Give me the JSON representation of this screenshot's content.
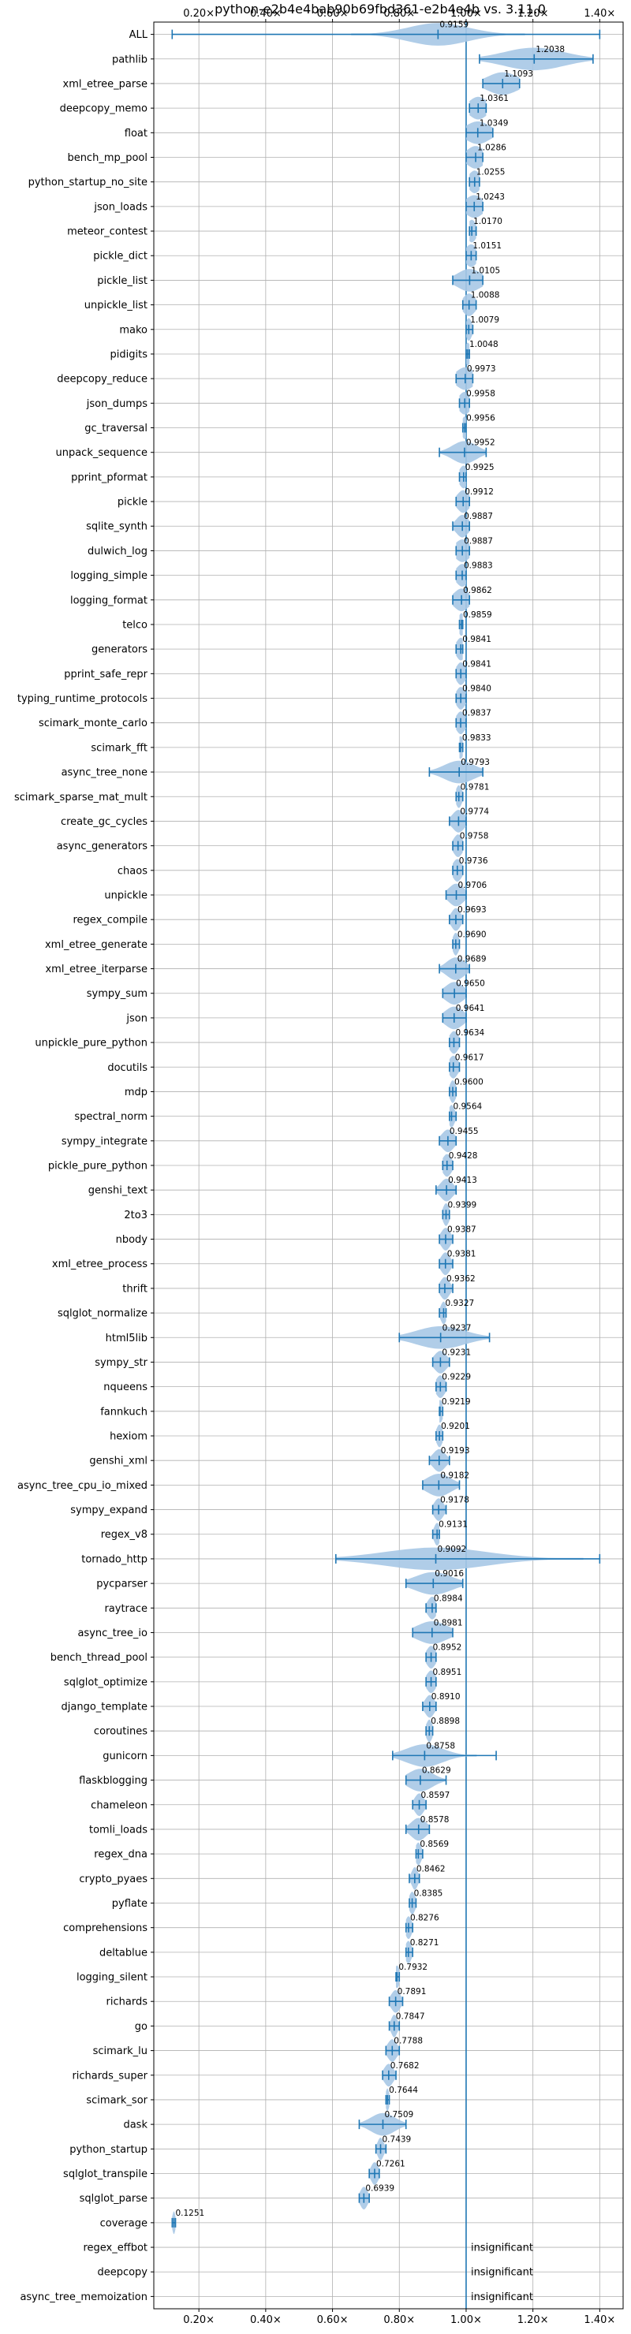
{
  "chart_data": {
    "type": "violin",
    "title": "python-e2b4e4bab90b69fbd361-e2b4e4b vs. 3.11.0",
    "xlabel": "",
    "ylabel": "",
    "xlim": [
      0.065,
      1.47
    ],
    "x_ticks": [
      0.2,
      0.4,
      0.6,
      0.8,
      1.0,
      1.2,
      1.4
    ],
    "x_tick_labels": [
      "0.20×",
      "0.40×",
      "0.60×",
      "0.80×",
      "1.00×",
      "1.20×",
      "1.40×"
    ],
    "tick_positions": [
      "top",
      "bottom"
    ],
    "grid": true,
    "reference_line": 1.0,
    "colors": {
      "violin": "#a7c8e6",
      "line": "#1f77b4",
      "grid": "#b0b0b0"
    },
    "insignificant_text": "insignificant",
    "benchmarks": [
      {
        "name": "ALL",
        "value": 0.9159,
        "label": "0.9159",
        "min": 0.12,
        "max": 1.4,
        "spread": 0.1
      },
      {
        "name": "pathlib",
        "value": 1.2038,
        "label": "1.2038",
        "min": 1.04,
        "max": 1.38,
        "spread": 0.1
      },
      {
        "name": "xml_etree_parse",
        "value": 1.1093,
        "label": "1.1093",
        "min": 1.05,
        "max": 1.16,
        "spread": 0.05
      },
      {
        "name": "deepcopy_memo",
        "value": 1.0361,
        "label": "1.0361",
        "min": 1.01,
        "max": 1.06,
        "spread": 0.03
      },
      {
        "name": "float",
        "value": 1.0349,
        "label": "1.0349",
        "min": 1.0,
        "max": 1.08,
        "spread": 0.04
      },
      {
        "name": "bench_mp_pool",
        "value": 1.0286,
        "label": "1.0286",
        "min": 1.0,
        "max": 1.05,
        "spread": 0.03
      },
      {
        "name": "python_startup_no_site",
        "value": 1.0255,
        "label": "1.0255",
        "min": 1.01,
        "max": 1.04,
        "spread": 0.02
      },
      {
        "name": "json_loads",
        "value": 1.0243,
        "label": "1.0243",
        "min": 1.0,
        "max": 1.05,
        "spread": 0.03
      },
      {
        "name": "meteor_contest",
        "value": 1.017,
        "label": "1.0170",
        "min": 1.01,
        "max": 1.03,
        "spread": 0.015
      },
      {
        "name": "pickle_dict",
        "value": 1.0151,
        "label": "1.0151",
        "min": 1.0,
        "max": 1.03,
        "spread": 0.02
      },
      {
        "name": "pickle_list",
        "value": 1.0105,
        "label": "1.0105",
        "min": 0.96,
        "max": 1.05,
        "spread": 0.04
      },
      {
        "name": "unpickle_list",
        "value": 1.0088,
        "label": "1.0088",
        "min": 0.99,
        "max": 1.03,
        "spread": 0.02
      },
      {
        "name": "mako",
        "value": 1.0079,
        "label": "1.0079",
        "min": 1.0,
        "max": 1.02,
        "spread": 0.01
      },
      {
        "name": "pidigits",
        "value": 1.0048,
        "label": "1.0048",
        "min": 1.0,
        "max": 1.01,
        "spread": 0.01
      },
      {
        "name": "deepcopy_reduce",
        "value": 0.9973,
        "label": "0.9973",
        "min": 0.97,
        "max": 1.02,
        "spread": 0.03
      },
      {
        "name": "json_dumps",
        "value": 0.9958,
        "label": "0.9958",
        "min": 0.98,
        "max": 1.01,
        "spread": 0.02
      },
      {
        "name": "gc_traversal",
        "value": 0.9956,
        "label": "0.9956",
        "min": 0.99,
        "max": 1.0,
        "spread": 0.01
      },
      {
        "name": "unpack_sequence",
        "value": 0.9952,
        "label": "0.9952",
        "min": 0.92,
        "max": 1.06,
        "spread": 0.04
      },
      {
        "name": "pprint_pformat",
        "value": 0.9925,
        "label": "0.9925",
        "min": 0.98,
        "max": 1.0,
        "spread": 0.015
      },
      {
        "name": "pickle",
        "value": 0.9912,
        "label": "0.9912",
        "min": 0.97,
        "max": 1.01,
        "spread": 0.02
      },
      {
        "name": "sqlite_synth",
        "value": 0.9887,
        "label": "0.9887",
        "min": 0.96,
        "max": 1.01,
        "spread": 0.02
      },
      {
        "name": "dulwich_log",
        "value": 0.9887,
        "label": "0.9887",
        "min": 0.97,
        "max": 1.01,
        "spread": 0.025
      },
      {
        "name": "logging_simple",
        "value": 0.9883,
        "label": "0.9883",
        "min": 0.97,
        "max": 1.0,
        "spread": 0.02
      },
      {
        "name": "logging_format",
        "value": 0.9862,
        "label": "0.9862",
        "min": 0.96,
        "max": 1.01,
        "spread": 0.025
      },
      {
        "name": "telco",
        "value": 0.9859,
        "label": "0.9859",
        "min": 0.98,
        "max": 0.99,
        "spread": 0.01
      },
      {
        "name": "generators",
        "value": 0.9841,
        "label": "0.9841",
        "min": 0.97,
        "max": 0.99,
        "spread": 0.015
      },
      {
        "name": "pprint_safe_repr",
        "value": 0.9841,
        "label": "0.9841",
        "min": 0.97,
        "max": 1.0,
        "spread": 0.015
      },
      {
        "name": "typing_runtime_protocols",
        "value": 0.984,
        "label": "0.9840",
        "min": 0.97,
        "max": 1.0,
        "spread": 0.015
      },
      {
        "name": "scimark_monte_carlo",
        "value": 0.9837,
        "label": "0.9837",
        "min": 0.97,
        "max": 1.0,
        "spread": 0.015
      },
      {
        "name": "scimark_fft",
        "value": 0.9833,
        "label": "0.9833",
        "min": 0.98,
        "max": 0.99,
        "spread": 0.01
      },
      {
        "name": "async_tree_none",
        "value": 0.9793,
        "label": "0.9793",
        "min": 0.89,
        "max": 1.05,
        "spread": 0.05
      },
      {
        "name": "scimark_sparse_mat_mult",
        "value": 0.9781,
        "label": "0.9781",
        "min": 0.97,
        "max": 0.99,
        "spread": 0.01
      },
      {
        "name": "create_gc_cycles",
        "value": 0.9774,
        "label": "0.9774",
        "min": 0.95,
        "max": 1.0,
        "spread": 0.02
      },
      {
        "name": "async_generators",
        "value": 0.9758,
        "label": "0.9758",
        "min": 0.96,
        "max": 0.99,
        "spread": 0.015
      },
      {
        "name": "chaos",
        "value": 0.9736,
        "label": "0.9736",
        "min": 0.96,
        "max": 0.99,
        "spread": 0.015
      },
      {
        "name": "unpickle",
        "value": 0.9706,
        "label": "0.9706",
        "min": 0.94,
        "max": 1.0,
        "spread": 0.025
      },
      {
        "name": "regex_compile",
        "value": 0.9693,
        "label": "0.9693",
        "min": 0.95,
        "max": 0.99,
        "spread": 0.015
      },
      {
        "name": "xml_etree_generate",
        "value": 0.969,
        "label": "0.9690",
        "min": 0.96,
        "max": 0.98,
        "spread": 0.01
      },
      {
        "name": "xml_etree_iterparse",
        "value": 0.9689,
        "label": "0.9689",
        "min": 0.92,
        "max": 1.01,
        "spread": 0.03
      },
      {
        "name": "sympy_sum",
        "value": 0.965,
        "label": "0.9650",
        "min": 0.93,
        "max": 1.0,
        "spread": 0.03
      },
      {
        "name": "json",
        "value": 0.9641,
        "label": "0.9641",
        "min": 0.93,
        "max": 1.0,
        "spread": 0.03
      },
      {
        "name": "unpickle_pure_python",
        "value": 0.9634,
        "label": "0.9634",
        "min": 0.95,
        "max": 0.98,
        "spread": 0.015
      },
      {
        "name": "docutils",
        "value": 0.9617,
        "label": "0.9617",
        "min": 0.95,
        "max": 0.98,
        "spread": 0.015
      },
      {
        "name": "mdp",
        "value": 0.96,
        "label": "0.9600",
        "min": 0.95,
        "max": 0.97,
        "spread": 0.01
      },
      {
        "name": "spectral_norm",
        "value": 0.9564,
        "label": "0.9564",
        "min": 0.95,
        "max": 0.97,
        "spread": 0.01
      },
      {
        "name": "sympy_integrate",
        "value": 0.9455,
        "label": "0.9455",
        "min": 0.92,
        "max": 0.97,
        "spread": 0.02
      },
      {
        "name": "pickle_pure_python",
        "value": 0.9428,
        "label": "0.9428",
        "min": 0.93,
        "max": 0.96,
        "spread": 0.015
      },
      {
        "name": "genshi_text",
        "value": 0.9413,
        "label": "0.9413",
        "min": 0.91,
        "max": 0.97,
        "spread": 0.02
      },
      {
        "name": "2to3",
        "value": 0.9399,
        "label": "0.9399",
        "min": 0.93,
        "max": 0.95,
        "spread": 0.01
      },
      {
        "name": "nbody",
        "value": 0.9387,
        "label": "0.9387",
        "min": 0.92,
        "max": 0.96,
        "spread": 0.015
      },
      {
        "name": "xml_etree_process",
        "value": 0.9381,
        "label": "0.9381",
        "min": 0.92,
        "max": 0.96,
        "spread": 0.015
      },
      {
        "name": "thrift",
        "value": 0.9362,
        "label": "0.9362",
        "min": 0.92,
        "max": 0.96,
        "spread": 0.015
      },
      {
        "name": "sqlglot_normalize",
        "value": 0.9327,
        "label": "0.9327",
        "min": 0.92,
        "max": 0.94,
        "spread": 0.01
      },
      {
        "name": "html5lib",
        "value": 0.9237,
        "label": "0.9237",
        "min": 0.8,
        "max": 1.07,
        "spread": 0.08
      },
      {
        "name": "sympy_str",
        "value": 0.9231,
        "label": "0.9231",
        "min": 0.9,
        "max": 0.95,
        "spread": 0.02
      },
      {
        "name": "nqueens",
        "value": 0.9229,
        "label": "0.9229",
        "min": 0.91,
        "max": 0.94,
        "spread": 0.015
      },
      {
        "name": "fannkuch",
        "value": 0.9219,
        "label": "0.9219",
        "min": 0.92,
        "max": 0.93,
        "spread": 0.01
      },
      {
        "name": "hexiom",
        "value": 0.9201,
        "label": "0.9201",
        "min": 0.91,
        "max": 0.93,
        "spread": 0.01
      },
      {
        "name": "genshi_xml",
        "value": 0.9193,
        "label": "0.9193",
        "min": 0.89,
        "max": 0.95,
        "spread": 0.02
      },
      {
        "name": "async_tree_cpu_io_mixed",
        "value": 0.9182,
        "label": "0.9182",
        "min": 0.87,
        "max": 0.98,
        "spread": 0.04
      },
      {
        "name": "sympy_expand",
        "value": 0.9178,
        "label": "0.9178",
        "min": 0.9,
        "max": 0.94,
        "spread": 0.015
      },
      {
        "name": "regex_v8",
        "value": 0.9131,
        "label": "0.9131",
        "min": 0.9,
        "max": 0.92,
        "spread": 0.01
      },
      {
        "name": "tornado_http",
        "value": 0.9092,
        "label": "0.9092",
        "min": 0.61,
        "max": 1.4,
        "spread": 0.17
      },
      {
        "name": "pycparser",
        "value": 0.9016,
        "label": "0.9016",
        "min": 0.82,
        "max": 0.99,
        "spread": 0.06
      },
      {
        "name": "raytrace",
        "value": 0.8984,
        "label": "0.8984",
        "min": 0.88,
        "max": 0.91,
        "spread": 0.015
      },
      {
        "name": "async_tree_io",
        "value": 0.8981,
        "label": "0.8981",
        "min": 0.84,
        "max": 0.96,
        "spread": 0.05
      },
      {
        "name": "bench_thread_pool",
        "value": 0.8952,
        "label": "0.8952",
        "min": 0.88,
        "max": 0.91,
        "spread": 0.015
      },
      {
        "name": "sqlglot_optimize",
        "value": 0.8951,
        "label": "0.8951",
        "min": 0.88,
        "max": 0.91,
        "spread": 0.015
      },
      {
        "name": "django_template",
        "value": 0.891,
        "label": "0.8910",
        "min": 0.87,
        "max": 0.91,
        "spread": 0.015
      },
      {
        "name": "coroutines",
        "value": 0.8898,
        "label": "0.8898",
        "min": 0.88,
        "max": 0.9,
        "spread": 0.01
      },
      {
        "name": "gunicorn",
        "value": 0.8758,
        "label": "0.8758",
        "min": 0.78,
        "max": 1.09,
        "spread": 0.06
      },
      {
        "name": "flaskblogging",
        "value": 0.8629,
        "label": "0.8629",
        "min": 0.82,
        "max": 0.94,
        "spread": 0.04
      },
      {
        "name": "chameleon",
        "value": 0.8597,
        "label": "0.8597",
        "min": 0.84,
        "max": 0.88,
        "spread": 0.015
      },
      {
        "name": "tomli_loads",
        "value": 0.8578,
        "label": "0.8578",
        "min": 0.82,
        "max": 0.89,
        "spread": 0.025
      },
      {
        "name": "regex_dna",
        "value": 0.8569,
        "label": "0.8569",
        "min": 0.85,
        "max": 0.87,
        "spread": 0.01
      },
      {
        "name": "crypto_pyaes",
        "value": 0.8462,
        "label": "0.8462",
        "min": 0.83,
        "max": 0.86,
        "spread": 0.01
      },
      {
        "name": "pyflate",
        "value": 0.8385,
        "label": "0.8385",
        "min": 0.83,
        "max": 0.85,
        "spread": 0.01
      },
      {
        "name": "comprehensions",
        "value": 0.8276,
        "label": "0.8276",
        "min": 0.82,
        "max": 0.84,
        "spread": 0.01
      },
      {
        "name": "deltablue",
        "value": 0.8271,
        "label": "0.8271",
        "min": 0.82,
        "max": 0.84,
        "spread": 0.01
      },
      {
        "name": "logging_silent",
        "value": 0.7932,
        "label": "0.7932",
        "min": 0.79,
        "max": 0.8,
        "spread": 0.008
      },
      {
        "name": "richards",
        "value": 0.7891,
        "label": "0.7891",
        "min": 0.77,
        "max": 0.81,
        "spread": 0.015
      },
      {
        "name": "go",
        "value": 0.7847,
        "label": "0.7847",
        "min": 0.77,
        "max": 0.8,
        "spread": 0.01
      },
      {
        "name": "scimark_lu",
        "value": 0.7788,
        "label": "0.7788",
        "min": 0.76,
        "max": 0.8,
        "spread": 0.015
      },
      {
        "name": "richards_super",
        "value": 0.7682,
        "label": "0.7682",
        "min": 0.75,
        "max": 0.79,
        "spread": 0.015
      },
      {
        "name": "scimark_sor",
        "value": 0.7644,
        "label": "0.7644",
        "min": 0.76,
        "max": 0.77,
        "spread": 0.006
      },
      {
        "name": "dask",
        "value": 0.7509,
        "label": "0.7509",
        "min": 0.68,
        "max": 0.82,
        "spread": 0.04
      },
      {
        "name": "python_startup",
        "value": 0.7439,
        "label": "0.7439",
        "min": 0.73,
        "max": 0.76,
        "spread": 0.01
      },
      {
        "name": "sqlglot_transpile",
        "value": 0.7261,
        "label": "0.7261",
        "min": 0.71,
        "max": 0.74,
        "spread": 0.012
      },
      {
        "name": "sqlglot_parse",
        "value": 0.6939,
        "label": "0.6939",
        "min": 0.68,
        "max": 0.71,
        "spread": 0.012
      },
      {
        "name": "coverage",
        "value": 0.1251,
        "label": "0.1251",
        "min": 0.12,
        "max": 0.13,
        "spread": 0.005
      },
      {
        "name": "regex_effbot",
        "value": null,
        "label": "insignificant"
      },
      {
        "name": "deepcopy",
        "value": null,
        "label": "insignificant"
      },
      {
        "name": "async_tree_memoization",
        "value": null,
        "label": "insignificant"
      }
    ]
  }
}
